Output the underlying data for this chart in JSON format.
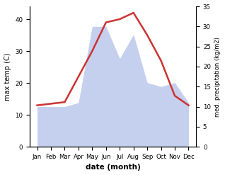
{
  "months": [
    "Jan",
    "Feb",
    "Mar",
    "Apr",
    "May",
    "Jun",
    "Jul",
    "Aug",
    "Sep",
    "Oct",
    "Nov",
    "Dec"
  ],
  "temperature": [
    13,
    13.5,
    14,
    22,
    30,
    39,
    40,
    42,
    35,
    27,
    16,
    13
  ],
  "precipitation": [
    10,
    10,
    10,
    11,
    30,
    30,
    22,
    28,
    16,
    15,
    16,
    11
  ],
  "temp_color": "#cc3333",
  "precip_fill_color": "#c5d0ee",
  "xlabel": "date (month)",
  "ylabel_left": "max temp (C)",
  "ylabel_right": "med. precipitation (kg/m2)",
  "ylim_left": [
    0,
    44
  ],
  "ylim_right": [
    0,
    35
  ],
  "yticks_left": [
    0,
    10,
    20,
    30,
    40
  ],
  "yticks_right": [
    0,
    5,
    10,
    15,
    20,
    25,
    30,
    35
  ],
  "background_color": "#ffffff"
}
